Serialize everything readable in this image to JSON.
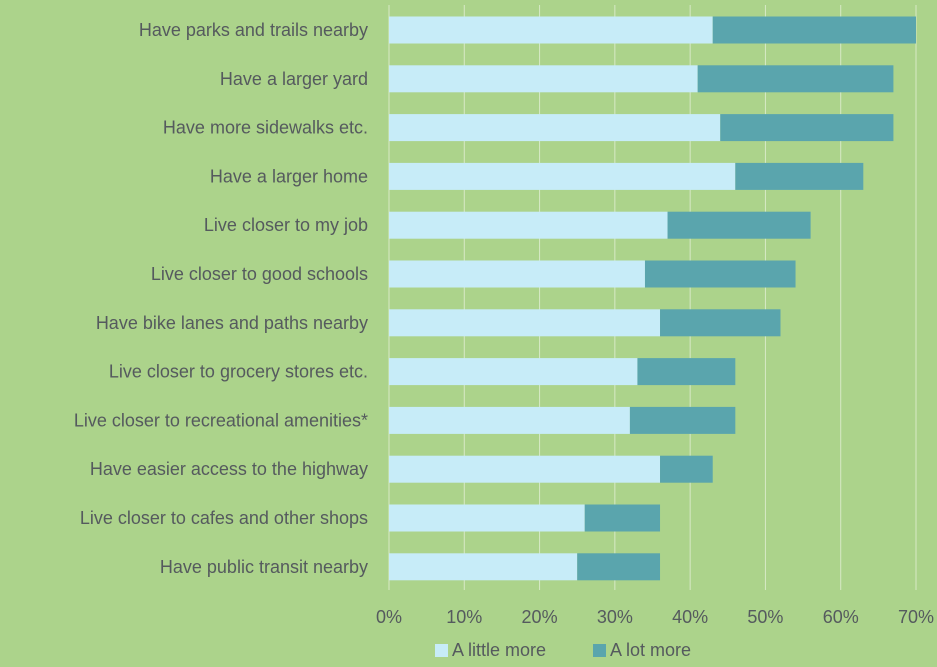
{
  "colors": {
    "background": "#acd38b",
    "gridline": "#d7e9c6",
    "text": "#555a5e",
    "series_a_little_more": "#c7ecf8",
    "series_a_lot_more": "#5aa5ad"
  },
  "chart_data": {
    "type": "bar",
    "orientation": "horizontal",
    "stacked": true,
    "categories": [
      "Have parks and trails nearby",
      "Have a larger yard",
      "Have more sidewalks etc.",
      "Have a larger home",
      "Live closer to my job",
      "Live closer to good schools",
      "Have bike lanes and paths nearby",
      "Live closer to grocery stores etc.",
      "Live closer to recreational amenities*",
      "Have easier access to the highway",
      "Live closer to cafes and other shops",
      "Have public transit nearby"
    ],
    "series": [
      {
        "name": "A little more",
        "color": "#c7ecf8",
        "values": [
          43,
          41,
          44,
          46,
          37,
          34,
          36,
          33,
          32,
          36,
          26,
          25
        ]
      },
      {
        "name": "A lot more",
        "color": "#5aa5ad",
        "values": [
          27,
          26,
          23,
          17,
          19,
          20,
          16,
          13,
          14,
          7,
          10,
          11
        ]
      }
    ],
    "xlim": [
      0,
      70
    ],
    "x_ticks": [
      0,
      10,
      20,
      30,
      40,
      50,
      60,
      70
    ],
    "x_tick_labels": [
      "0%",
      "10%",
      "20%",
      "30%",
      "40%",
      "50%",
      "60%",
      "70%"
    ],
    "grid": "vertical",
    "legend_position": "bottom",
    "title": "",
    "xlabel": "",
    "ylabel": ""
  }
}
